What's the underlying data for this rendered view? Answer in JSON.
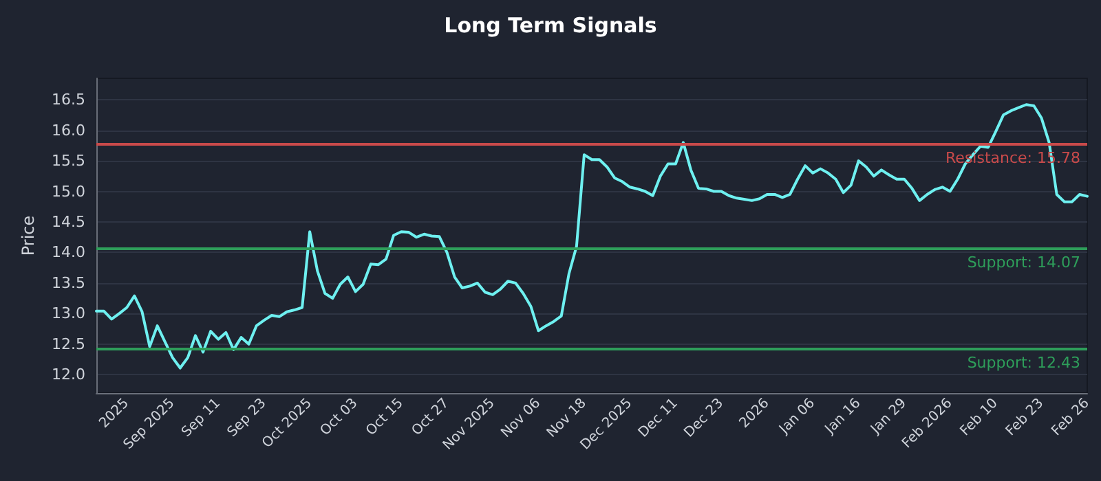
{
  "chart_data": {
    "type": "line",
    "title": "Long Term Signals",
    "ylabel": "Price",
    "categories": [
      null,
      null,
      null,
      null,
      "2025",
      null,
      null,
      null,
      null,
      null,
      "Sep 2025",
      null,
      null,
      null,
      null,
      null,
      "Sep 11",
      null,
      null,
      null,
      null,
      null,
      "Sep 23",
      null,
      null,
      null,
      null,
      null,
      "Oct 2025",
      null,
      null,
      null,
      null,
      null,
      "Oct 03",
      null,
      null,
      null,
      null,
      null,
      "Oct 15",
      null,
      null,
      null,
      null,
      null,
      "Oct 27",
      null,
      null,
      null,
      null,
      null,
      "Nov 2025",
      null,
      null,
      null,
      null,
      null,
      "Nov 06",
      null,
      null,
      null,
      null,
      null,
      "Nov 18",
      null,
      null,
      null,
      null,
      null,
      "Dec 2025",
      null,
      null,
      null,
      null,
      null,
      "Dec 11",
      null,
      null,
      null,
      null,
      null,
      "Dec 23",
      null,
      null,
      null,
      null,
      null,
      "2026",
      null,
      null,
      null,
      null,
      null,
      "Jan 06",
      null,
      null,
      null,
      null,
      null,
      "Jan 16",
      null,
      null,
      null,
      null,
      null,
      "Jan 29",
      null,
      null,
      null,
      null,
      null,
      "Feb 2026",
      null,
      null,
      null,
      null,
      null,
      "Feb 10",
      null,
      null,
      null,
      null,
      null,
      "Feb 23",
      null,
      null,
      null,
      null,
      null,
      "Feb 26"
    ],
    "series": [
      {
        "color": "#6ef0f0",
        "values": [
          13.04,
          13.04,
          12.91,
          13.0,
          13.1,
          13.29,
          13.03,
          12.46,
          12.8,
          12.54,
          12.28,
          12.11,
          12.28,
          12.64,
          12.37,
          12.71,
          12.58,
          12.69,
          12.41,
          12.61,
          12.5,
          12.8,
          12.89,
          12.97,
          12.95,
          13.03,
          13.06,
          13.1,
          14.34,
          13.7,
          13.33,
          13.25,
          13.48,
          13.6,
          13.36,
          13.48,
          13.81,
          13.8,
          13.89,
          14.28,
          14.34,
          14.33,
          14.25,
          14.3,
          14.27,
          14.26,
          14.0,
          13.6,
          13.42,
          13.45,
          13.5,
          13.35,
          13.31,
          13.4,
          13.53,
          13.5,
          13.33,
          13.12,
          12.72,
          12.8,
          12.87,
          12.96,
          13.65,
          14.1,
          15.6,
          15.52,
          15.52,
          15.4,
          15.22,
          15.16,
          15.07,
          15.04,
          15.0,
          14.93,
          15.25,
          15.45,
          15.45,
          15.8,
          15.35,
          15.05,
          15.04,
          15.0,
          15.0,
          14.93,
          14.89,
          14.87,
          14.85,
          14.88,
          14.95,
          14.95,
          14.9,
          14.95,
          15.2,
          15.42,
          15.3,
          15.37,
          15.3,
          15.2,
          14.98,
          15.1,
          15.5,
          15.4,
          15.25,
          15.35,
          15.27,
          15.2,
          15.2,
          15.05,
          14.85,
          14.95,
          15.03,
          15.07,
          15.0,
          15.2,
          15.45,
          15.6,
          15.74,
          15.72,
          15.98,
          16.25,
          16.32,
          16.37,
          16.42,
          16.4,
          16.2,
          15.8,
          14.95,
          14.83,
          14.83,
          14.95,
          14.92
        ]
      }
    ],
    "ylim": [
      11.7,
      16.85
    ],
    "yticks": [
      {
        "value": 12,
        "label": "12.0"
      },
      {
        "value": 12.5,
        "label": "12.5"
      },
      {
        "value": 13,
        "label": "13.0"
      },
      {
        "value": 13.5,
        "label": "13.5"
      },
      {
        "value": 14,
        "label": "14.0"
      },
      {
        "value": 14.5,
        "label": "14.5"
      },
      {
        "value": 15,
        "label": "15.0"
      },
      {
        "value": 15.5,
        "label": "15.5"
      },
      {
        "value": 16,
        "label": "16.0"
      },
      {
        "value": 16.5,
        "label": "16.5"
      }
    ],
    "grid": "y",
    "marker": "none",
    "ref_lines": [
      {
        "axis": "y",
        "value": 15.78,
        "label": "Resistance: 15.78",
        "color": "#c94a4a"
      },
      {
        "axis": "y",
        "value": 14.07,
        "label": "Support: 14.07",
        "color": "#2e9e5a"
      },
      {
        "axis": "y",
        "value": 12.43,
        "label": "Support: 12.43",
        "color": "#2e9e5a"
      }
    ]
  }
}
